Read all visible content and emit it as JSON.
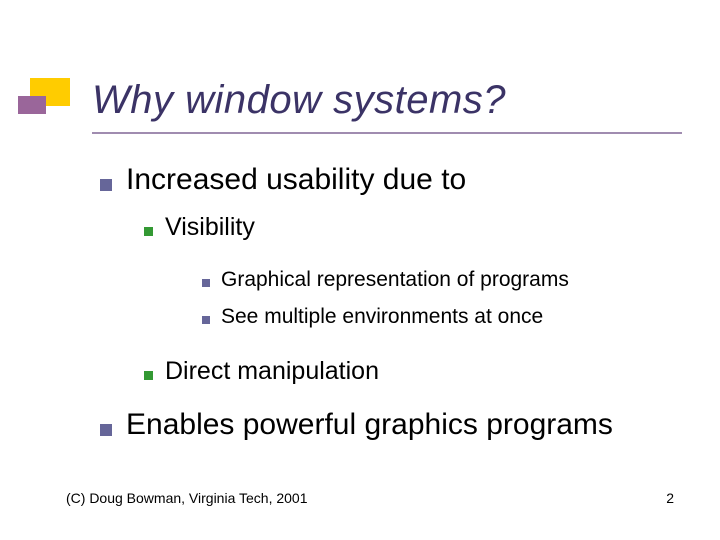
{
  "colors": {
    "accent_yellow": "#ffcc00",
    "accent_purple": "#9a669a",
    "title_text": "#3b3366",
    "title_underline": "#a08cb0",
    "body_text": "#000000",
    "bullet_lvl1": "#666699",
    "bullet_lvl2": "#339933",
    "bullet_lvl3": "#666699",
    "footer_text": "#000000"
  },
  "typography": {
    "title_fontsize": 40,
    "lvl1_fontsize": 30,
    "lvl2_fontsize": 25,
    "lvl3_fontsize": 21,
    "footer_fontsize": 14
  },
  "title": "Why window systems?",
  "outline": {
    "items": [
      {
        "text": "Increased usability due to",
        "children": [
          {
            "text": "Visibility",
            "children": [
              {
                "text": "Graphical representation of programs"
              },
              {
                "text": "See multiple environments at once"
              }
            ]
          },
          {
            "text": "Direct manipulation"
          }
        ]
      },
      {
        "text": "Enables powerful graphics programs"
      }
    ]
  },
  "footer": {
    "copyright": "(C) Doug Bowman, Virginia Tech, 2001",
    "page_number": "2"
  }
}
